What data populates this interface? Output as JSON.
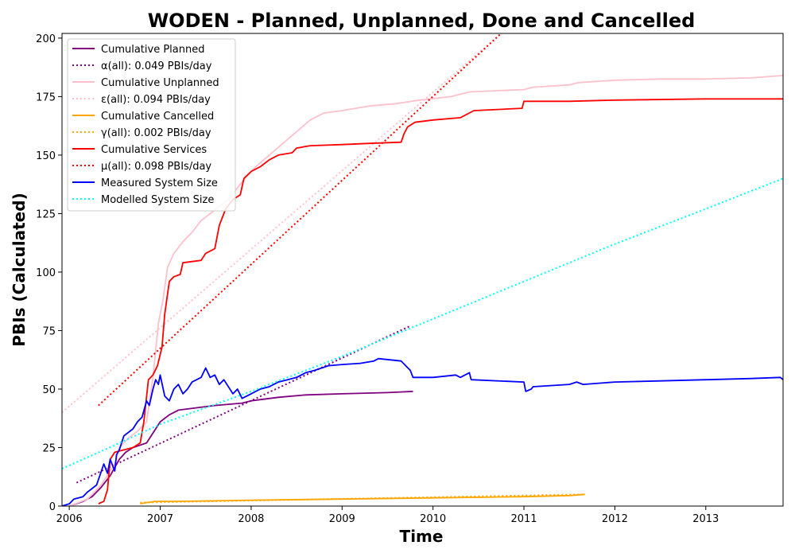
{
  "chart_data": {
    "type": "line",
    "title": "WODEN - Planned, Unplanned, Done  and Cancelled",
    "xlabel": "Time",
    "ylabel": "PBIs (Calculated)",
    "xlim": [
      2005.92,
      2013.85
    ],
    "ylim": [
      0,
      202
    ],
    "x_ticks": [
      {
        "value": 2006,
        "label": "2006"
      },
      {
        "value": 2007,
        "label": "2007"
      },
      {
        "value": 2008,
        "label": "2008"
      },
      {
        "value": 2009,
        "label": "2009"
      },
      {
        "value": 2010,
        "label": "2010"
      },
      {
        "value": 2011,
        "label": "2011"
      },
      {
        "value": 2012,
        "label": "2012"
      },
      {
        "value": 2013,
        "label": "2013"
      }
    ],
    "y_ticks": [
      {
        "value": 0,
        "label": "0"
      },
      {
        "value": 25,
        "label": "25"
      },
      {
        "value": 50,
        "label": "50"
      },
      {
        "value": 75,
        "label": "75"
      },
      {
        "value": 100,
        "label": "100"
      },
      {
        "value": 125,
        "label": "125"
      },
      {
        "value": 150,
        "label": "150"
      },
      {
        "value": 175,
        "label": "175"
      },
      {
        "value": 200,
        "label": "200"
      }
    ],
    "legend_position": "top-left",
    "grid": false,
    "series": [
      {
        "name": "Cumulative Planned",
        "color": "#800080",
        "style": "solid",
        "points": [
          [
            2006.0,
            0
          ],
          [
            2006.15,
            2
          ],
          [
            2006.25,
            4
          ],
          [
            2006.35,
            8
          ],
          [
            2006.45,
            13
          ],
          [
            2006.55,
            20
          ],
          [
            2006.62,
            23
          ],
          [
            2006.7,
            25
          ],
          [
            2006.85,
            27
          ],
          [
            2006.95,
            33
          ],
          [
            2007.0,
            36
          ],
          [
            2007.1,
            39
          ],
          [
            2007.2,
            41
          ],
          [
            2007.4,
            42
          ],
          [
            2007.6,
            43
          ],
          [
            2007.9,
            44
          ],
          [
            2008.0,
            45
          ],
          [
            2008.3,
            46.5
          ],
          [
            2008.6,
            47.5
          ],
          [
            2009.0,
            48
          ],
          [
            2009.5,
            48.5
          ],
          [
            2009.78,
            49
          ]
        ]
      },
      {
        "name": "α(all): 0.049 PBIs/day",
        "color": "#800080",
        "style": "dotted",
        "points": [
          [
            2006.08,
            10
          ],
          [
            2009.75,
            77
          ]
        ]
      },
      {
        "name": "Cumulative Unplanned",
        "color": "#ffc0cb",
        "style": "solid",
        "points": [
          [
            2006.0,
            0
          ],
          [
            2006.2,
            3
          ],
          [
            2006.35,
            9
          ],
          [
            2006.5,
            18
          ],
          [
            2006.55,
            25
          ],
          [
            2006.65,
            29
          ],
          [
            2006.75,
            32
          ],
          [
            2006.85,
            36
          ],
          [
            2006.92,
            55
          ],
          [
            2006.98,
            78
          ],
          [
            2007.03,
            88
          ],
          [
            2007.08,
            102
          ],
          [
            2007.15,
            108
          ],
          [
            2007.25,
            113
          ],
          [
            2007.35,
            117
          ],
          [
            2007.45,
            122
          ],
          [
            2007.55,
            125
          ],
          [
            2007.65,
            128
          ],
          [
            2007.75,
            131
          ],
          [
            2007.85,
            136
          ],
          [
            2007.95,
            141
          ],
          [
            2008.05,
            145
          ],
          [
            2008.2,
            150
          ],
          [
            2008.35,
            155
          ],
          [
            2008.5,
            160
          ],
          [
            2008.65,
            165
          ],
          [
            2008.8,
            168
          ],
          [
            2009.0,
            169
          ],
          [
            2009.3,
            171
          ],
          [
            2009.6,
            172
          ],
          [
            2009.85,
            173.5
          ],
          [
            2010.2,
            175
          ],
          [
            2010.4,
            177
          ],
          [
            2010.7,
            177.5
          ],
          [
            2011.0,
            178
          ],
          [
            2011.1,
            179
          ],
          [
            2011.5,
            180
          ],
          [
            2011.6,
            181
          ],
          [
            2012.0,
            182
          ],
          [
            2012.5,
            182.5
          ],
          [
            2013.0,
            182.5
          ],
          [
            2013.5,
            183
          ],
          [
            2013.85,
            184
          ]
        ]
      },
      {
        "name": "ε(all): 0.094 PBIs/day",
        "color": "#ffc0cb",
        "style": "dotted",
        "points": [
          [
            2005.92,
            40
          ],
          [
            2010.75,
            202
          ]
        ]
      },
      {
        "name": "Cumulative Cancelled",
        "color": "#ffa500",
        "style": "solid",
        "points": [
          [
            2006.78,
            1
          ],
          [
            2006.85,
            1.5
          ],
          [
            2006.95,
            2
          ],
          [
            2007.2,
            2
          ],
          [
            2008.0,
            2.5
          ],
          [
            2009.0,
            3
          ],
          [
            2010.0,
            3.5
          ],
          [
            2011.0,
            4
          ],
          [
            2011.5,
            4.5
          ],
          [
            2011.67,
            5
          ]
        ]
      },
      {
        "name": "γ(all): 0.002 PBIs/day",
        "color": "#ffa500",
        "style": "dotted",
        "points": [
          [
            2006.78,
            1.5
          ],
          [
            2011.67,
            5
          ]
        ]
      },
      {
        "name": "Cumulative Services",
        "color": "#ff0000",
        "style": "solid",
        "points": [
          [
            2006.32,
            1
          ],
          [
            2006.38,
            2
          ],
          [
            2006.42,
            7
          ],
          [
            2006.45,
            20
          ],
          [
            2006.5,
            23
          ],
          [
            2006.6,
            24
          ],
          [
            2006.7,
            25
          ],
          [
            2006.78,
            27
          ],
          [
            2006.82,
            36
          ],
          [
            2006.87,
            54
          ],
          [
            2006.92,
            56
          ],
          [
            2006.97,
            60
          ],
          [
            2007.02,
            68
          ],
          [
            2007.05,
            82
          ],
          [
            2007.1,
            96
          ],
          [
            2007.15,
            98
          ],
          [
            2007.22,
            99
          ],
          [
            2007.25,
            104
          ],
          [
            2007.45,
            105
          ],
          [
            2007.5,
            108
          ],
          [
            2007.6,
            110
          ],
          [
            2007.65,
            120
          ],
          [
            2007.72,
            127
          ],
          [
            2007.8,
            131
          ],
          [
            2007.88,
            133
          ],
          [
            2007.92,
            140
          ],
          [
            2008.0,
            143
          ],
          [
            2008.1,
            145
          ],
          [
            2008.2,
            148
          ],
          [
            2008.3,
            150
          ],
          [
            2008.45,
            151
          ],
          [
            2008.5,
            153
          ],
          [
            2008.65,
            154
          ],
          [
            2009.0,
            154.5
          ],
          [
            2009.3,
            155
          ],
          [
            2009.65,
            155.5
          ],
          [
            2009.68,
            159
          ],
          [
            2009.72,
            162
          ],
          [
            2009.8,
            164
          ],
          [
            2010.0,
            165
          ],
          [
            2010.3,
            166
          ],
          [
            2010.4,
            168
          ],
          [
            2010.45,
            169
          ],
          [
            2010.98,
            170
          ],
          [
            2011.0,
            173
          ],
          [
            2011.5,
            173
          ],
          [
            2012.0,
            173.5
          ],
          [
            2013.0,
            174
          ],
          [
            2013.85,
            174
          ]
        ]
      },
      {
        "name": "μ(all): 0.098 PBIs/day",
        "color": "#ff0000",
        "style": "dotted",
        "points": [
          [
            2006.32,
            43
          ],
          [
            2010.75,
            202
          ]
        ]
      },
      {
        "name": "Measured System Size",
        "color": "#0000ff",
        "style": "solid",
        "points": [
          [
            2005.92,
            0
          ],
          [
            2006.0,
            1
          ],
          [
            2006.05,
            3
          ],
          [
            2006.15,
            4
          ],
          [
            2006.2,
            6
          ],
          [
            2006.3,
            9
          ],
          [
            2006.38,
            18
          ],
          [
            2006.42,
            14
          ],
          [
            2006.45,
            20
          ],
          [
            2006.5,
            15
          ],
          [
            2006.52,
            22
          ],
          [
            2006.55,
            24
          ],
          [
            2006.6,
            30
          ],
          [
            2006.7,
            33
          ],
          [
            2006.75,
            36
          ],
          [
            2006.8,
            38
          ],
          [
            2006.85,
            45
          ],
          [
            2006.88,
            43
          ],
          [
            2006.92,
            50
          ],
          [
            2006.95,
            54
          ],
          [
            2006.98,
            52
          ],
          [
            2007.0,
            56
          ],
          [
            2007.05,
            47
          ],
          [
            2007.1,
            45
          ],
          [
            2007.15,
            50
          ],
          [
            2007.2,
            52
          ],
          [
            2007.25,
            48
          ],
          [
            2007.3,
            50
          ],
          [
            2007.35,
            53
          ],
          [
            2007.45,
            55
          ],
          [
            2007.5,
            59
          ],
          [
            2007.55,
            55
          ],
          [
            2007.6,
            56
          ],
          [
            2007.65,
            52
          ],
          [
            2007.7,
            54
          ],
          [
            2007.8,
            48
          ],
          [
            2007.85,
            50
          ],
          [
            2007.9,
            46
          ],
          [
            2008.0,
            48
          ],
          [
            2008.1,
            50
          ],
          [
            2008.2,
            51
          ],
          [
            2008.3,
            53
          ],
          [
            2008.4,
            54
          ],
          [
            2008.5,
            55
          ],
          [
            2008.6,
            57
          ],
          [
            2008.7,
            58
          ],
          [
            2008.85,
            60
          ],
          [
            2009.0,
            60.5
          ],
          [
            2009.2,
            61
          ],
          [
            2009.35,
            62
          ],
          [
            2009.4,
            63
          ],
          [
            2009.65,
            62
          ],
          [
            2009.7,
            60
          ],
          [
            2009.75,
            58
          ],
          [
            2009.78,
            55
          ],
          [
            2010.0,
            55
          ],
          [
            2010.25,
            56
          ],
          [
            2010.3,
            55
          ],
          [
            2010.4,
            57
          ],
          [
            2010.42,
            54
          ],
          [
            2011.0,
            53
          ],
          [
            2011.02,
            49
          ],
          [
            2011.08,
            50
          ],
          [
            2011.1,
            51
          ],
          [
            2011.5,
            52
          ],
          [
            2011.58,
            53
          ],
          [
            2011.65,
            52
          ],
          [
            2012.0,
            53
          ],
          [
            2012.5,
            53.5
          ],
          [
            2013.0,
            54
          ],
          [
            2013.5,
            54.5
          ],
          [
            2013.82,
            55
          ],
          [
            2013.85,
            54
          ]
        ]
      },
      {
        "name": "Modelled System Size",
        "color": "#00ffff",
        "style": "dotted",
        "points": [
          [
            2005.92,
            16
          ],
          [
            2006.5,
            26
          ],
          [
            2007.0,
            35
          ],
          [
            2007.5,
            42
          ],
          [
            2008.0,
            49
          ],
          [
            2009.0,
            64
          ],
          [
            2010.0,
            80
          ],
          [
            2011.0,
            96
          ],
          [
            2012.0,
            112
          ],
          [
            2013.0,
            127
          ],
          [
            2013.85,
            140
          ]
        ]
      }
    ]
  }
}
